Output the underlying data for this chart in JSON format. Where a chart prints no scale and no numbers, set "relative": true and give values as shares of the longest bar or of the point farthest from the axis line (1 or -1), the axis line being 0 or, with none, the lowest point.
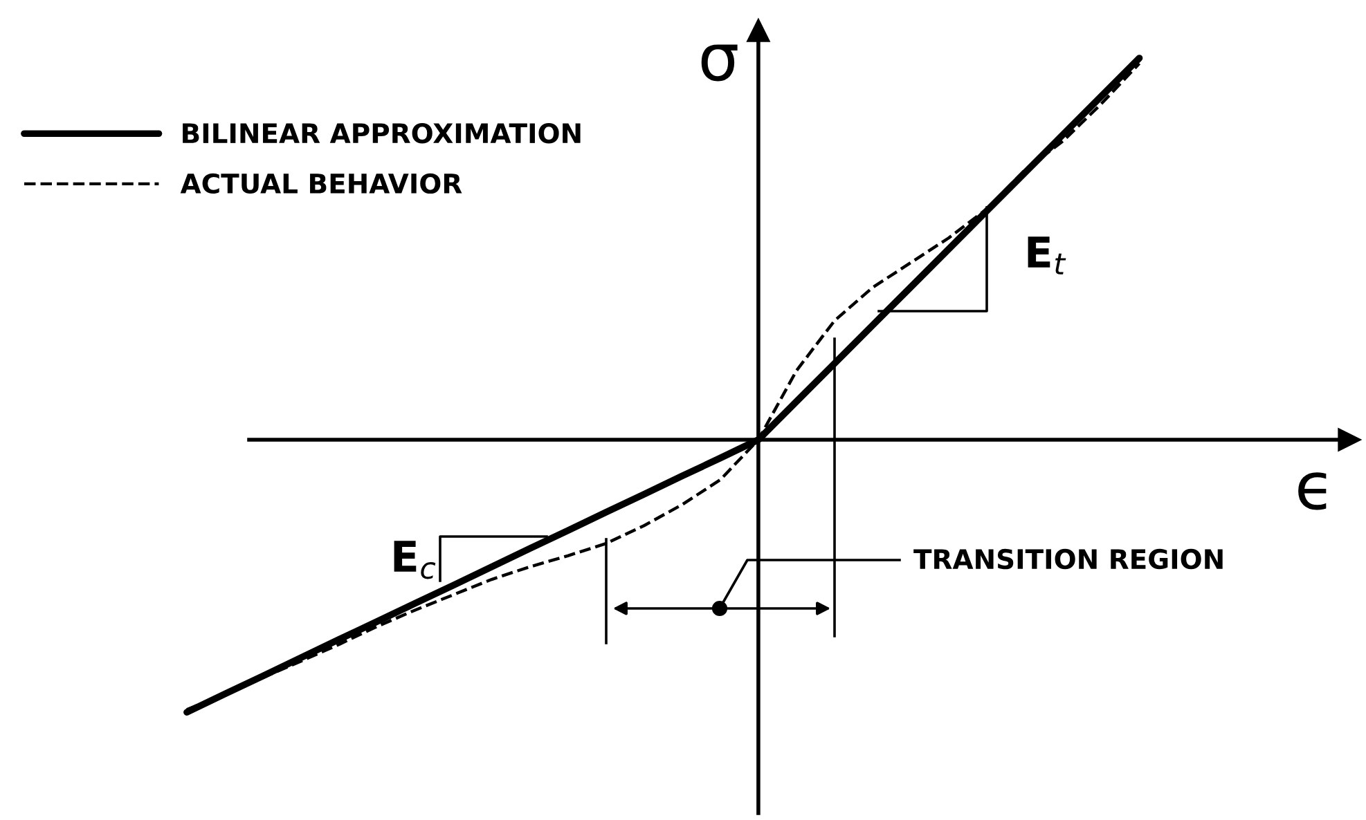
{
  "chart_data": {
    "type": "line",
    "relative": true,
    "xlabel": "ϵ",
    "ylabel": "σ",
    "categories": [
      null,
      null,
      null,
      null,
      null,
      null,
      null,
      null,
      null,
      null,
      null,
      null,
      null,
      null,
      null,
      null,
      null,
      null,
      null,
      null,
      null,
      null,
      null,
      null,
      null,
      null
    ],
    "series": [
      {
        "name": "BILINEAR APPROXIMATION",
        "color": "#000000",
        "line_style": "solid",
        "values": [
          -0.714,
          -0.666,
          -0.619,
          -0.571,
          -0.523,
          -0.476,
          -0.428,
          -0.381,
          -0.333,
          -0.285,
          -0.238,
          -0.19,
          -0.143,
          -0.095,
          -0.048,
          0,
          0.1,
          0.2,
          0.3,
          0.4,
          0.5,
          0.6,
          0.7,
          0.8,
          0.9,
          1.0
        ]
      },
      {
        "name": "ACTUAL BEHAVIOR",
        "color": "#000000",
        "line_style": "dashed",
        "values": [
          -0.707,
          -0.667,
          -0.623,
          -0.58,
          -0.536,
          -0.489,
          -0.446,
          -0.406,
          -0.366,
          -0.333,
          -0.304,
          -0.272,
          -0.225,
          -0.17,
          -0.105,
          0,
          0.181,
          0.312,
          0.399,
          0.464,
          0.529,
          0.605,
          0.707,
          0.783,
          0.88,
          0.986
        ]
      }
    ],
    "annotations": [
      "E$_{t}$",
      "E$_{c}$",
      "TRANSITION REGION"
    ],
    "legend": "top left",
    "marker": "none"
  }
}
